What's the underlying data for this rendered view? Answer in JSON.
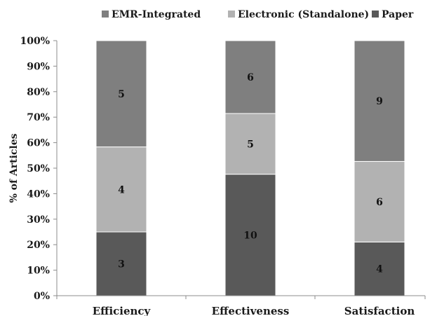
{
  "chart_data": {
    "type": "bar",
    "stacked": true,
    "normalized": true,
    "title": "",
    "xlabel": "",
    "ylabel": "% of Articles",
    "ylim": [
      0,
      100
    ],
    "yticks": [
      "0%",
      "10%",
      "20%",
      "30%",
      "40%",
      "50%",
      "60%",
      "70%",
      "80%",
      "90%",
      "100%"
    ],
    "categories": [
      "Efficiency",
      "Effectiveness",
      "Satisfaction"
    ],
    "series": [
      {
        "name": "Paper",
        "color": "#595959",
        "values": [
          3,
          10,
          4
        ]
      },
      {
        "name": "Electronic (Standalone)",
        "color": "#b2b2b2",
        "values": [
          4,
          5,
          6
        ]
      },
      {
        "name": "EMR-Integrated",
        "color": "#7f7f7f",
        "values": [
          5,
          6,
          9
        ]
      }
    ],
    "legend_order": [
      "EMR-Integrated",
      "Electronic (Standalone)",
      "Paper"
    ],
    "legend_position": "top",
    "grid": false
  }
}
